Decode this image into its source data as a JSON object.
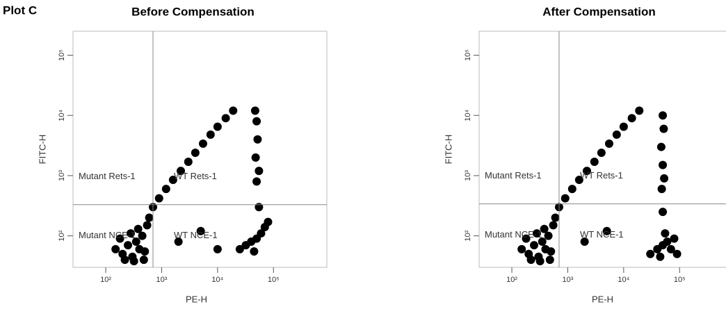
{
  "panel_label": "Plot C",
  "chart_data": [
    {
      "type": "scatter",
      "title": "Before Compensation",
      "x_label": "PE-H",
      "y_label": "FITC-H",
      "log_x": true,
      "log_y": true,
      "color": "#000000",
      "xlim": [
        26,
        900000
      ],
      "ylim": [
        30,
        250000
      ],
      "xticks": [
        {
          "value": 100,
          "label": "10²"
        },
        {
          "value": 1000,
          "label": "10³"
        },
        {
          "value": 10000,
          "label": "10⁴"
        },
        {
          "value": 100000,
          "label": "10⁵"
        }
      ],
      "yticks": [
        {
          "value": 100,
          "label": "10²"
        },
        {
          "value": 1000,
          "label": "10³"
        },
        {
          "value": 10000,
          "label": "10⁴"
        },
        {
          "value": 100000,
          "label": "10⁵"
        }
      ],
      "gates": {
        "x": 700,
        "y": 330
      },
      "annotations": [
        "Mutant Rets-1",
        "WT Rets-1",
        "Mutant NCE-1",
        "WT NCE-1"
      ],
      "x": [
        150,
        200,
        250,
        300,
        350,
        400,
        450,
        500,
        180,
        280,
        380,
        550,
        600,
        220,
        320,
        480,
        700,
        900,
        1200,
        1600,
        2200,
        3000,
        4000,
        5500,
        7500,
        10000,
        14000,
        19000,
        25000,
        32000,
        40000,
        50000,
        60000,
        70000,
        80000,
        45000,
        55000,
        50000,
        48000,
        52000,
        50000,
        47000,
        55000,
        2000,
        5000,
        10000
      ],
      "values": [
        60,
        50,
        70,
        45,
        80,
        60,
        100,
        55,
        90,
        110,
        130,
        150,
        200,
        40,
        38,
        40,
        300,
        420,
        600,
        850,
        1200,
        1700,
        2400,
        3400,
        4800,
        6500,
        9000,
        12000,
        60,
        70,
        80,
        90,
        110,
        140,
        170,
        55,
        300,
        800,
        2000,
        4000,
        8000,
        12000,
        1200,
        80,
        120,
        60
      ]
    },
    {
      "type": "scatter",
      "title": "After Compensation",
      "x_label": "PE-H",
      "y_label": "FITC-H",
      "log_x": true,
      "log_y": true,
      "color": "#000000",
      "xlim": [
        26,
        900000
      ],
      "ylim": [
        30,
        250000
      ],
      "xticks": [
        {
          "value": 100,
          "label": "10²"
        },
        {
          "value": 1000,
          "label": "10³"
        },
        {
          "value": 10000,
          "label": "10⁴"
        },
        {
          "value": 100000,
          "label": "10⁵"
        }
      ],
      "yticks": [
        {
          "value": 100,
          "label": "10²"
        },
        {
          "value": 1000,
          "label": "10³"
        },
        {
          "value": 10000,
          "label": "10⁴"
        },
        {
          "value": 100000,
          "label": "10⁵"
        }
      ],
      "gates": {
        "x": 700,
        "y": 340
      },
      "annotations": [
        "Mutant Rets-1",
        "WT Rets-1",
        "Mutant NCE-1",
        "WT NCE-1"
      ],
      "x": [
        150,
        200,
        250,
        300,
        350,
        400,
        450,
        500,
        180,
        280,
        380,
        550,
        600,
        220,
        320,
        480,
        700,
        900,
        1200,
        1600,
        2200,
        3000,
        4000,
        5500,
        7500,
        10000,
        14000,
        19000,
        30000,
        40000,
        50000,
        60000,
        70000,
        80000,
        45000,
        55000,
        50000,
        48000,
        50000,
        47000,
        52000,
        50000,
        53000,
        90000,
        2000,
        5000
      ],
      "values": [
        60,
        50,
        70,
        45,
        80,
        60,
        100,
        55,
        90,
        110,
        130,
        150,
        200,
        40,
        38,
        40,
        300,
        420,
        600,
        850,
        1200,
        1700,
        2400,
        3400,
        4800,
        6500,
        9000,
        12000,
        50,
        60,
        70,
        80,
        60,
        90,
        45,
        110,
        250,
        600,
        1500,
        3000,
        6000,
        10000,
        900,
        50,
        80,
        120
      ]
    }
  ]
}
